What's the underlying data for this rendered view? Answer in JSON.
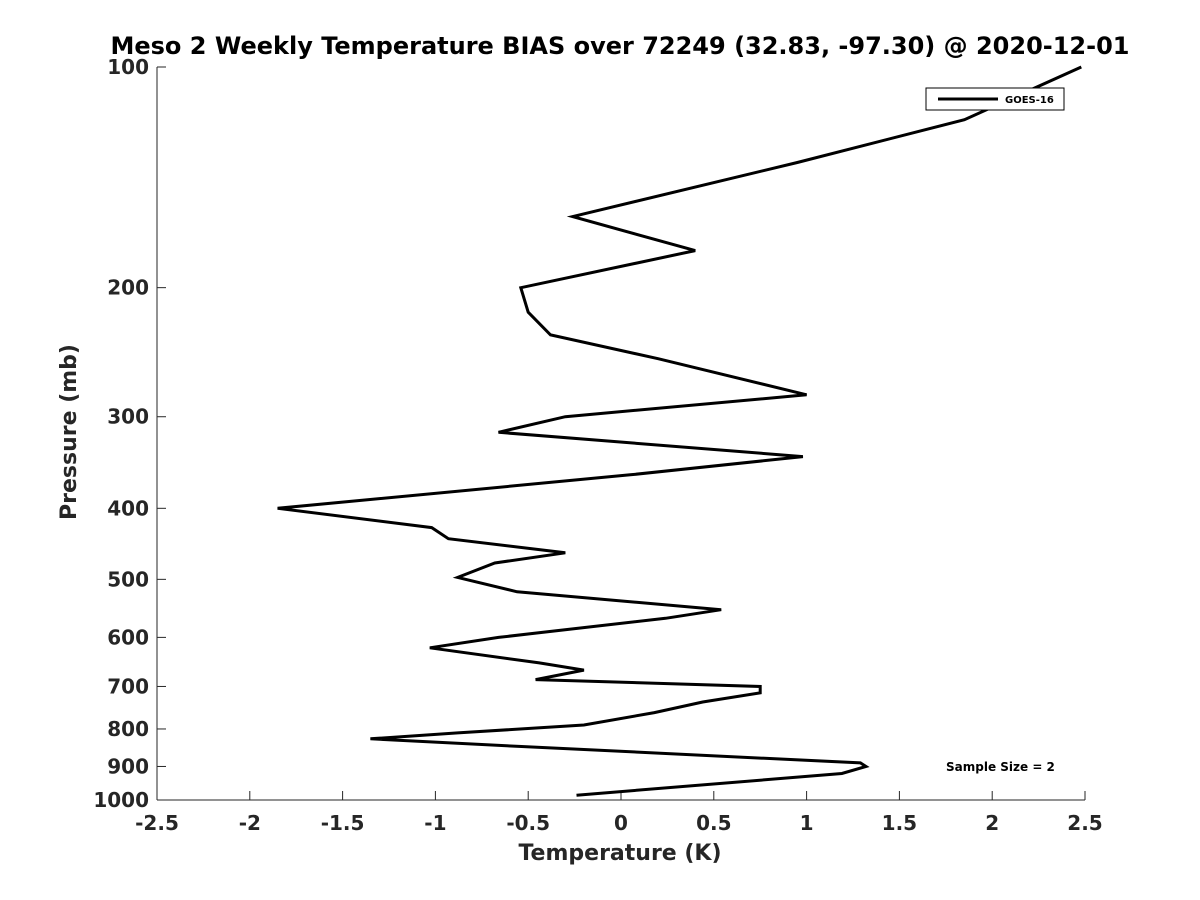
{
  "chart_data": {
    "type": "line",
    "title": "Meso 2 Weekly Temperature BIAS over 72249 (32.83, -97.30) @ 2020-12-01",
    "xlabel": "Temperature (K)",
    "ylabel": "Pressure (mb)",
    "xlim": [
      -2.5,
      2.5
    ],
    "ylim": [
      1000,
      100
    ],
    "y_scale": "log",
    "y_reversed": true,
    "grid": false,
    "x_ticks": [
      -2.5,
      -2,
      -1.5,
      -1,
      -0.5,
      0,
      0.5,
      1,
      1.5,
      2,
      2.5
    ],
    "x_tick_labels": [
      "-2.5",
      "-2",
      "-1.5",
      "-1",
      "-0.5",
      "0",
      "0.5",
      "1",
      "1.5",
      "2",
      "2.5"
    ],
    "y_ticks": [
      100,
      200,
      300,
      400,
      500,
      600,
      700,
      800,
      900,
      1000
    ],
    "y_tick_labels": [
      "100",
      "200",
      "300",
      "400",
      "500",
      "600",
      "700",
      "800",
      "900",
      "1000"
    ],
    "legend_position": "top-right",
    "annotation": "Sample Size = 2",
    "series": [
      {
        "name": "GOES-16",
        "color": "#000000",
        "points": [
          {
            "x": 2.48,
            "p": 100
          },
          {
            "x": 1.85,
            "p": 118
          },
          {
            "x": 0.95,
            "p": 135
          },
          {
            "x": -0.26,
            "p": 160
          },
          {
            "x": 0.4,
            "p": 178
          },
          {
            "x": -0.54,
            "p": 200
          },
          {
            "x": -0.5,
            "p": 216
          },
          {
            "x": -0.38,
            "p": 232
          },
          {
            "x": 0.2,
            "p": 250
          },
          {
            "x": 1.0,
            "p": 280
          },
          {
            "x": -0.3,
            "p": 300
          },
          {
            "x": -0.66,
            "p": 315
          },
          {
            "x": 0.98,
            "p": 340
          },
          {
            "x": 0.05,
            "p": 360
          },
          {
            "x": -1.85,
            "p": 400
          },
          {
            "x": -1.02,
            "p": 425
          },
          {
            "x": -0.93,
            "p": 440
          },
          {
            "x": -0.3,
            "p": 460
          },
          {
            "x": -0.68,
            "p": 475
          },
          {
            "x": -0.88,
            "p": 497
          },
          {
            "x": -0.56,
            "p": 520
          },
          {
            "x": 0.54,
            "p": 550
          },
          {
            "x": 0.24,
            "p": 565
          },
          {
            "x": -0.66,
            "p": 600
          },
          {
            "x": -1.03,
            "p": 620
          },
          {
            "x": -0.44,
            "p": 650
          },
          {
            "x": -0.2,
            "p": 665
          },
          {
            "x": -0.46,
            "p": 685
          },
          {
            "x": 0.75,
            "p": 700
          },
          {
            "x": 0.75,
            "p": 714
          },
          {
            "x": 0.44,
            "p": 735
          },
          {
            "x": 0.18,
            "p": 760
          },
          {
            "x": -0.2,
            "p": 790
          },
          {
            "x": -0.88,
            "p": 810
          },
          {
            "x": -1.35,
            "p": 825
          },
          {
            "x": -0.55,
            "p": 845
          },
          {
            "x": 1.29,
            "p": 890
          },
          {
            "x": 1.32,
            "p": 900
          },
          {
            "x": 1.19,
            "p": 920
          },
          {
            "x": -0.24,
            "p": 985
          }
        ]
      }
    ]
  }
}
